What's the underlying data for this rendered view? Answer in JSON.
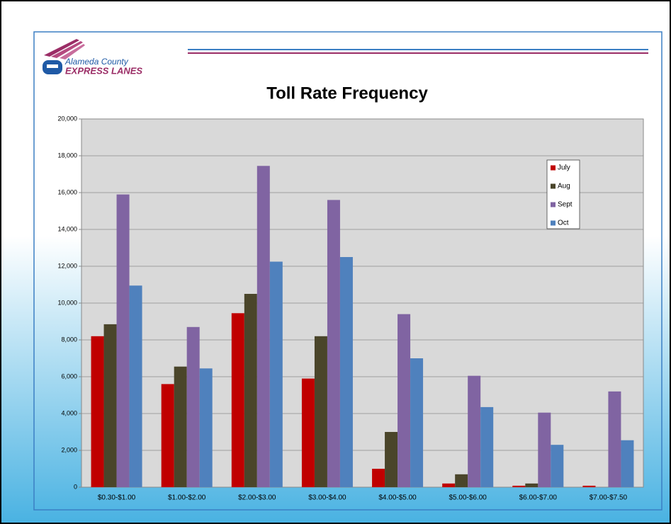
{
  "logo": {
    "line1": "Alameda County",
    "line2": "EXPRESS LANES"
  },
  "chart_data": {
    "type": "bar",
    "title": "Toll Rate Frequency",
    "categories": [
      "$0.30-$1.00",
      "$1.00-$2.00",
      "$2.00-$3.00",
      "$3.00-$4.00",
      "$4.00-$5.00",
      "$5.00-$6.00",
      "$6.00-$7.00",
      "$7.00-$7.50"
    ],
    "series": [
      {
        "name": "July",
        "color": "#c00000",
        "values": [
          8200,
          5600,
          9450,
          5900,
          1000,
          200,
          80,
          80
        ]
      },
      {
        "name": "Aug",
        "color": "#4a452a",
        "values": [
          8850,
          6550,
          10500,
          8200,
          3000,
          700,
          200,
          0
        ]
      },
      {
        "name": "Sept",
        "color": "#8064a2",
        "values": [
          15900,
          8700,
          17450,
          15600,
          9400,
          6050,
          4050,
          5200
        ]
      },
      {
        "name": "Oct",
        "color": "#4f81bd",
        "values": [
          10950,
          6450,
          12250,
          12500,
          7000,
          4350,
          2300,
          2550
        ]
      }
    ],
    "ylim": [
      0,
      20000
    ],
    "yticks": [
      0,
      {
        "value": 2000,
        "label": "2,000"
      },
      {
        "value": 4000,
        "label": "4,000"
      },
      {
        "value": 6000,
        "label": "6,000"
      },
      {
        "value": 8000,
        "label": "8,000"
      },
      {
        "value": 10000,
        "label": "10,000"
      },
      {
        "value": 12000,
        "label": "12,000"
      },
      {
        "value": 14000,
        "label": "14,000"
      },
      {
        "value": 16000,
        "label": "16,000"
      },
      {
        "value": 18000,
        "label": "18,000"
      },
      {
        "value": 20000,
        "label": "20,000"
      }
    ],
    "grid": true,
    "legend": "right"
  }
}
